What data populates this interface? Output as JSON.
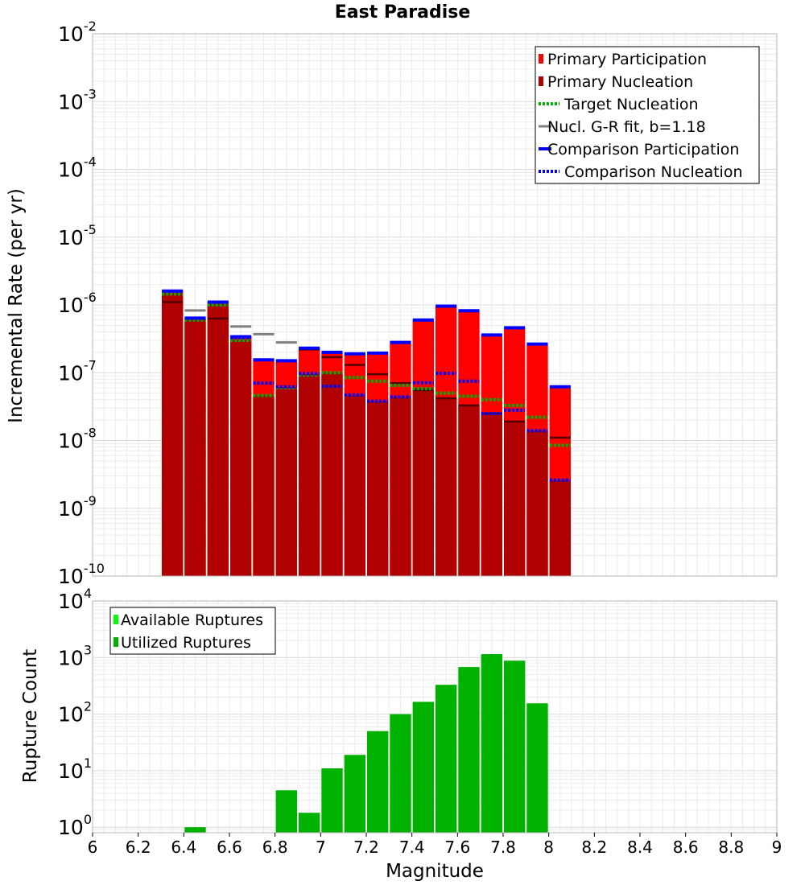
{
  "chart_data": [
    {
      "type": "bar",
      "title": "East Paradise",
      "ylabel": "Incremental Rate (per yr)",
      "xlabel": "",
      "y_scale": "log",
      "ylim": [
        1e-10,
        0.01
      ],
      "xlim": [
        6,
        9
      ],
      "grid": true,
      "legend_position": "top-right",
      "bin_width": 0.1,
      "x": [
        6.35,
        6.45,
        6.55,
        6.65,
        6.75,
        6.85,
        6.95,
        7.05,
        7.15,
        7.25,
        7.35,
        7.45,
        7.55,
        7.65,
        7.75,
        7.85,
        7.95,
        8.05
      ],
      "y_ticks": [
        {
          "base": "10",
          "exp": "-10"
        },
        {
          "base": "10",
          "exp": "-9"
        },
        {
          "base": "10",
          "exp": "-8"
        },
        {
          "base": "10",
          "exp": "-7"
        },
        {
          "base": "10",
          "exp": "-6"
        },
        {
          "base": "10",
          "exp": "-5"
        },
        {
          "base": "10",
          "exp": "-4"
        },
        {
          "base": "10",
          "exp": "-3"
        },
        {
          "base": "10",
          "exp": "-2"
        }
      ],
      "series": [
        {
          "name": "Primary Participation",
          "style": "bar",
          "color": "#ff0000",
          "values": [
            1.6e-06,
            6.4e-07,
            1.1e-06,
            3.4e-07,
            1.55e-07,
            1.45e-07,
            2.2e-07,
            1.95e-07,
            1.85e-07,
            1.9e-07,
            2.7e-07,
            5.9e-07,
            9.5e-07,
            8e-07,
            3.5e-07,
            4.5e-07,
            2.6e-07,
            6e-08
          ]
        },
        {
          "name": "Primary Nucleation",
          "style": "bar",
          "color": "#b00000",
          "values": [
            1.5e-06,
            6.2e-07,
            1.05e-06,
            3e-07,
            4.6e-08,
            6.1e-08,
            9.5e-08,
            1e-07,
            4.7e-08,
            3.8e-08,
            4.4e-08,
            6e-08,
            4.2e-08,
            3.3e-08,
            2.4e-08,
            1.9e-08,
            1.4e-08,
            2.6e-09
          ]
        },
        {
          "name": "Target Nucleation",
          "style": "dotted",
          "color": "#00b000",
          "values": [
            1.45e-06,
            6e-07,
            1e-06,
            3e-07,
            4.6e-08,
            6e-08,
            9.2e-08,
            1e-07,
            8.5e-08,
            7.5e-08,
            6.5e-08,
            5.8e-08,
            5e-08,
            4.5e-08,
            4e-08,
            3.3e-08,
            2.2e-08,
            8.5e-09
          ]
        },
        {
          "name": "Nucl. G-R fit, b=1.18",
          "style": "solid-gray",
          "color": "#808080",
          "values": [
            null,
            8.3e-07,
            null,
            4.8e-07,
            3.7e-07,
            2.8e-07,
            null,
            null,
            null,
            null,
            null,
            null,
            null,
            null,
            null,
            null,
            null,
            null
          ]
        },
        {
          "name": "",
          "style": "solid-dark",
          "color": "#500000",
          "values": [
            1.1e-06,
            null,
            6.3e-07,
            null,
            null,
            null,
            2.2e-07,
            1.7e-07,
            1.3e-07,
            9.5e-08,
            7e-08,
            5.5e-08,
            4.2e-08,
            3.3e-08,
            2.5e-08,
            1.9e-08,
            null,
            1.1e-08
          ]
        },
        {
          "name": "Comparison Participation",
          "style": "solid",
          "color": "#0000ff",
          "values": [
            1.6e-06,
            6.4e-07,
            1.1e-06,
            3.4e-07,
            1.55e-07,
            1.5e-07,
            2.3e-07,
            2e-07,
            1.9e-07,
            1.95e-07,
            2.8e-07,
            6e-07,
            9.6e-07,
            8.2e-07,
            3.6e-07,
            4.6e-07,
            2.65e-07,
            6.2e-08
          ]
        },
        {
          "name": "Comparison Nucleation",
          "style": "dotted",
          "color": "#0000ff",
          "values": [
            null,
            null,
            null,
            3.3e-07,
            7e-08,
            6.2e-08,
            9.7e-08,
            6.3e-08,
            4.7e-08,
            3.8e-08,
            4.4e-08,
            7.1e-08,
            9.8e-08,
            7.5e-08,
            2.5e-08,
            2.8e-08,
            1.4e-08,
            2.6e-09
          ]
        }
      ]
    },
    {
      "type": "bar",
      "title": "",
      "ylabel": "Rupture Count",
      "xlabel": "Magnitude",
      "y_scale": "log",
      "ylim": [
        0.8,
        10000
      ],
      "xlim": [
        6,
        9
      ],
      "grid": true,
      "legend_position": "top-left",
      "bin_width": 0.1,
      "x_ticks": [
        "6",
        "6.2",
        "6.4",
        "6.6",
        "6.8",
        "7",
        "7.2",
        "7.4",
        "7.6",
        "7.8",
        "8",
        "8.2",
        "8.4",
        "8.6",
        "8.8",
        "9"
      ],
      "y_ticks": [
        {
          "base": "10",
          "exp": "0"
        },
        {
          "base": "10",
          "exp": "1"
        },
        {
          "base": "10",
          "exp": "2"
        },
        {
          "base": "10",
          "exp": "3"
        },
        {
          "base": "10",
          "exp": "4"
        }
      ],
      "x": [
        6.45,
        6.85,
        6.95,
        7.05,
        7.15,
        7.25,
        7.35,
        7.45,
        7.55,
        7.65,
        7.75,
        7.85,
        7.95
      ],
      "series": [
        {
          "name": "Available Ruptures",
          "color": "#00ff00",
          "values": [
            1,
            4.5,
            1.8,
            11,
            19,
            50,
            100,
            165,
            330,
            680,
            1150,
            880,
            155
          ]
        },
        {
          "name": "Utilized Ruptures",
          "color": "#00b200",
          "values": [
            1,
            4.5,
            1.8,
            11,
            19,
            50,
            100,
            165,
            330,
            680,
            1150,
            880,
            155
          ]
        }
      ]
    }
  ]
}
